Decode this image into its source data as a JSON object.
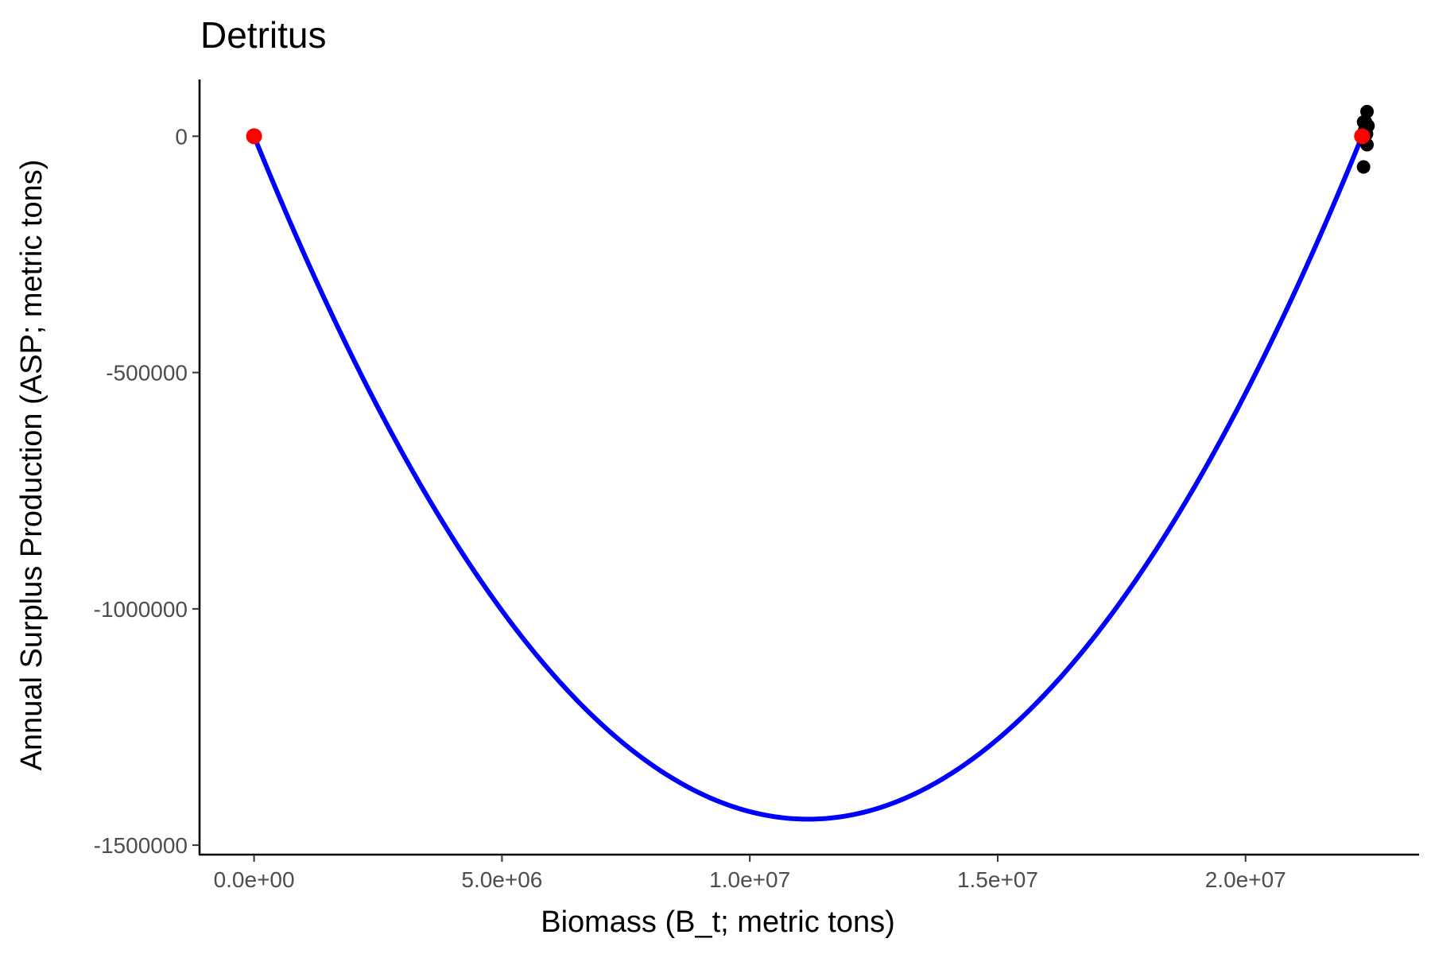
{
  "chart_data": {
    "type": "scatter",
    "title": "Detritus",
    "xlabel": "Biomass (B_t; metric tons)",
    "ylabel": "Annual Surplus Production (ASP; metric tons)",
    "xlim": [
      -1100000,
      23500000
    ],
    "ylim": [
      -1520000,
      120000
    ],
    "x_ticks": [
      {
        "value": 0,
        "label": "0.0e+00"
      },
      {
        "value": 5000000,
        "label": "5.0e+06"
      },
      {
        "value": 10000000,
        "label": "1.0e+07"
      },
      {
        "value": 15000000,
        "label": "1.5e+07"
      },
      {
        "value": 20000000,
        "label": "2.0e+07"
      }
    ],
    "y_ticks": [
      {
        "value": 0,
        "label": "0"
      },
      {
        "value": -500000,
        "label": "-500000"
      },
      {
        "value": -1000000,
        "label": "-1000000"
      },
      {
        "value": -1500000,
        "label": "-1500000"
      }
    ],
    "grid": false,
    "series": [
      {
        "kind": "curve",
        "color": "#0000ff",
        "curve": {
          "form": "quadratic",
          "x_zero_1": 0,
          "x_zero_2": 22350000,
          "y_min": -1445000
        }
      },
      {
        "kind": "points",
        "color": "#000000",
        "x": [
          22450000,
          22420000,
          22470000,
          22380000,
          22400000,
          22440000,
          22360000,
          22450000,
          22380000
        ],
        "y": [
          52000,
          30000,
          22000,
          30000,
          12000,
          5000,
          -5000,
          -18000,
          -65000
        ]
      },
      {
        "kind": "points",
        "color": "#ff0000",
        "x": [
          0,
          22350000
        ],
        "y": [
          0,
          0
        ]
      }
    ]
  }
}
